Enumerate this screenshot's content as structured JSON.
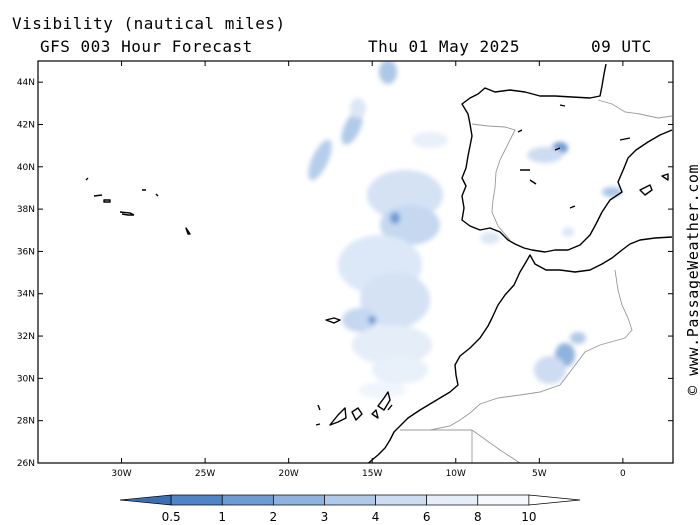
{
  "header": {
    "title": "Visibility (nautical miles)",
    "subtitle": "GFS 003 Hour Forecast",
    "date": "Thu 01 May 2025",
    "time": "09 UTC"
  },
  "credit": "© www.PassageWeather.com",
  "map": {
    "lon_range": [
      -35,
      3
    ],
    "lat_range": [
      26,
      45
    ],
    "lat_ticks": [
      {
        "value": 44,
        "label": "44N"
      },
      {
        "value": 42,
        "label": "42N"
      },
      {
        "value": 40,
        "label": "40N"
      },
      {
        "value": 38,
        "label": "38N"
      },
      {
        "value": 36,
        "label": "36N"
      },
      {
        "value": 34,
        "label": "34N"
      },
      {
        "value": 32,
        "label": "32N"
      },
      {
        "value": 30,
        "label": "30N"
      },
      {
        "value": 28,
        "label": "28N"
      },
      {
        "value": 26,
        "label": "26N"
      }
    ],
    "lon_ticks": [
      {
        "value": -30,
        "label": "30W"
      },
      {
        "value": -25,
        "label": "25W"
      },
      {
        "value": -20,
        "label": "20W"
      },
      {
        "value": -15,
        "label": "15W"
      },
      {
        "value": -10,
        "label": "10W"
      },
      {
        "value": -5,
        "label": "5W"
      },
      {
        "value": 0,
        "label": "0"
      }
    ],
    "colors": {
      "coast": "#000000",
      "border": "#999999"
    }
  },
  "colorbar": {
    "levels": [
      "0.5",
      "1",
      "2",
      "3",
      "4",
      "6",
      "8",
      "10"
    ],
    "colors": [
      "#3a6fb5",
      "#4f84c7",
      "#6e9bd3",
      "#90b3de",
      "#b0c9e8",
      "#cddcf1",
      "#e4edf8",
      "#f5f8fd",
      "#ffffff"
    ]
  }
}
